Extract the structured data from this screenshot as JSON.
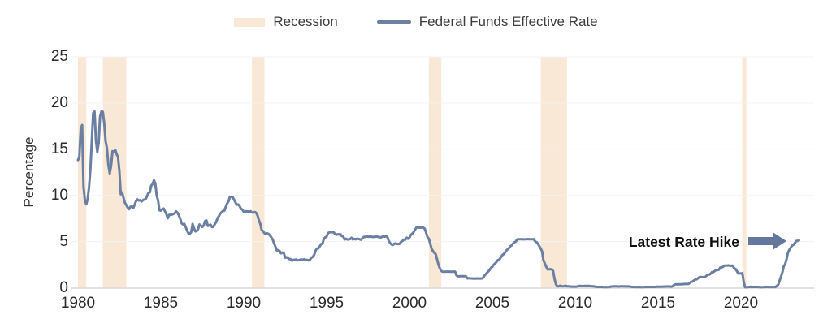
{
  "legend": {
    "recession_label": "Recession",
    "line_label": "Federal Funds Effective Rate"
  },
  "y_axis": {
    "title": "Percentage",
    "ticks": [
      0,
      5,
      10,
      15,
      20,
      25
    ]
  },
  "x_axis": {
    "ticks": [
      1980,
      1985,
      1990,
      1995,
      2000,
      2005,
      2010,
      2015,
      2020
    ]
  },
  "annotation": {
    "label": "Latest Rate Hike",
    "icon": "right-arrow-icon",
    "points_to_value": 5.1
  },
  "colors": {
    "recession_band": "#f9e8d5",
    "line": "#6b7fa2",
    "arrow": "#64789e",
    "axis_line": "#d9d9d9",
    "gridline": "#f3f3f3",
    "tick_text": "#2b2b2b",
    "legend_text": "#3d3d3d",
    "annotation_text": "#111111"
  },
  "chart_data": {
    "type": "line",
    "series_name": "Federal Funds Effective Rate",
    "ylabel": "Percentage",
    "ylim": [
      0,
      25
    ],
    "xlim": [
      1980,
      2023.6
    ],
    "legend_position": "top",
    "grid": "faint-horizontal",
    "frequency": "monthly",
    "x_start_year": 1980,
    "values": [
      13.82,
      14.13,
      17.19,
      17.61,
      10.98,
      9.47,
      9.03,
      9.61,
      10.87,
      12.81,
      15.85,
      18.9,
      19.08,
      15.93,
      14.7,
      15.72,
      18.52,
      19.1,
      19.04,
      17.82,
      15.87,
      15.08,
      13.31,
      12.37,
      13.22,
      14.78,
      14.68,
      14.94,
      14.45,
      14.15,
      12.59,
      10.12,
      10.31,
      9.71,
      9.2,
      8.95,
      8.68,
      8.51,
      8.77,
      8.8,
      8.63,
      8.98,
      9.37,
      9.56,
      9.45,
      9.48,
      9.34,
      9.47,
      9.56,
      9.59,
      9.91,
      10.29,
      10.32,
      11.06,
      11.23,
      11.64,
      11.3,
      9.99,
      9.43,
      8.38,
      8.35,
      8.5,
      8.58,
      8.27,
      7.97,
      7.53,
      7.88,
      7.9,
      7.92,
      7.99,
      8.05,
      8.27,
      8.14,
      7.86,
      7.48,
      6.99,
      6.85,
      6.92,
      6.56,
      6.17,
      5.89,
      5.85,
      6.04,
      6.91,
      6.43,
      6.1,
      6.13,
      6.37,
      6.85,
      6.73,
      6.58,
      6.73,
      7.22,
      7.29,
      6.69,
      6.77,
      6.83,
      6.58,
      6.58,
      6.87,
      7.09,
      7.51,
      7.75,
      8.01,
      8.19,
      8.3,
      8.35,
      8.76,
      9.12,
      9.36,
      9.85,
      9.84,
      9.81,
      9.53,
      9.24,
      8.99,
      9.02,
      8.84,
      8.55,
      8.45,
      8.23,
      8.24,
      8.28,
      8.26,
      8.18,
      8.29,
      8.15,
      8.13,
      8.2,
      8.11,
      7.81,
      7.31,
      6.91,
      6.25,
      6.12,
      5.91,
      5.78,
      5.9,
      5.82,
      5.66,
      5.45,
      5.21,
      4.81,
      4.43,
      4.03,
      4.06,
      3.98,
      3.73,
      3.82,
      3.76,
      3.25,
      3.3,
      3.22,
      3.1,
      3.09,
      2.92,
      3.02,
      3.03,
      3.07,
      2.96,
      3.0,
      3.04,
      3.06,
      3.03,
      3.09,
      2.99,
      3.02,
      2.96,
      3.05,
      3.25,
      3.34,
      3.56,
      4.01,
      4.25,
      4.26,
      4.47,
      4.73,
      4.76,
      5.29,
      5.45,
      5.53,
      5.92,
      5.98,
      6.05,
      6.01,
      6.0,
      5.85,
      5.74,
      5.8,
      5.76,
      5.8,
      5.6,
      5.56,
      5.22,
      5.31,
      5.22,
      5.24,
      5.27,
      5.4,
      5.22,
      5.3,
      5.24,
      5.31,
      5.29,
      5.25,
      5.19,
      5.39,
      5.51,
      5.5,
      5.56,
      5.52,
      5.54,
      5.54,
      5.5,
      5.52,
      5.5,
      5.56,
      5.51,
      5.49,
      5.45,
      5.49,
      5.56,
      5.54,
      5.55,
      5.51,
      5.07,
      4.83,
      4.68,
      4.63,
      4.76,
      4.81,
      4.74,
      4.74,
      4.76,
      4.99,
      5.07,
      5.22,
      5.2,
      5.42,
      5.3,
      5.45,
      5.73,
      5.85,
      6.02,
      6.27,
      6.53,
      6.54,
      6.5,
      6.52,
      6.51,
      6.51,
      6.4,
      5.98,
      5.49,
      5.31,
      4.8,
      4.21,
      3.97,
      3.77,
      3.65,
      3.07,
      2.49,
      2.09,
      1.82,
      1.73,
      1.74,
      1.73,
      1.75,
      1.75,
      1.75,
      1.73,
      1.74,
      1.75,
      1.75,
      1.34,
      1.24,
      1.24,
      1.26,
      1.25,
      1.26,
      1.26,
      1.22,
      1.01,
      1.03,
      1.01,
      1.01,
      1.0,
      0.98,
      1.0,
      1.01,
      1.0,
      1.0,
      1.0,
      1.03,
      1.26,
      1.43,
      1.61,
      1.76,
      1.93,
      2.16,
      2.28,
      2.5,
      2.63,
      2.79,
      3.0,
      3.04,
      3.26,
      3.5,
      3.62,
      3.78,
      4.0,
      4.16,
      4.29,
      4.49,
      4.59,
      4.79,
      4.94,
      4.99,
      5.24,
      5.25,
      5.25,
      5.25,
      5.25,
      5.24,
      5.25,
      5.26,
      5.26,
      5.25,
      5.25,
      5.25,
      5.26,
      5.02,
      4.94,
      4.76,
      4.49,
      4.24,
      3.94,
      2.98,
      2.61,
      2.28,
      1.98,
      2.0,
      2.01,
      2.0,
      1.81,
      0.97,
      0.39,
      0.16,
      0.15,
      0.22,
      0.18,
      0.15,
      0.18,
      0.21,
      0.16,
      0.16,
      0.15,
      0.12,
      0.12,
      0.12,
      0.11,
      0.13,
      0.16,
      0.2,
      0.2,
      0.18,
      0.18,
      0.19,
      0.19,
      0.19,
      0.19,
      0.18,
      0.17,
      0.16,
      0.14,
      0.1,
      0.09,
      0.09,
      0.07,
      0.1,
      0.08,
      0.07,
      0.08,
      0.07,
      0.08,
      0.1,
      0.13,
      0.14,
      0.16,
      0.16,
      0.16,
      0.13,
      0.14,
      0.16,
      0.16,
      0.16,
      0.14,
      0.15,
      0.14,
      0.15,
      0.11,
      0.09,
      0.09,
      0.08,
      0.08,
      0.09,
      0.08,
      0.09,
      0.07,
      0.07,
      0.08,
      0.09,
      0.09,
      0.1,
      0.09,
      0.09,
      0.09,
      0.09,
      0.09,
      0.12,
      0.11,
      0.11,
      0.11,
      0.12,
      0.12,
      0.13,
      0.13,
      0.14,
      0.14,
      0.12,
      0.12,
      0.24,
      0.34,
      0.38,
      0.36,
      0.37,
      0.37,
      0.38,
      0.39,
      0.4,
      0.4,
      0.4,
      0.41,
      0.54,
      0.65,
      0.66,
      0.79,
      0.9,
      0.91,
      1.04,
      1.15,
      1.16,
      1.15,
      1.15,
      1.16,
      1.3,
      1.41,
      1.42,
      1.51,
      1.69,
      1.7,
      1.82,
      1.91,
      1.91,
      1.95,
      2.19,
      2.2,
      2.27,
      2.4,
      2.4,
      2.41,
      2.42,
      2.39,
      2.38,
      2.4,
      2.13,
      2.04,
      1.83,
      1.55,
      1.55,
      1.55,
      1.58,
      0.65,
      0.05,
      0.05,
      0.08,
      0.09,
      0.1,
      0.09,
      0.09,
      0.09,
      0.09,
      0.09,
      0.08,
      0.07,
      0.07,
      0.06,
      0.08,
      0.1,
      0.09,
      0.08,
      0.08,
      0.08,
      0.08,
      0.08,
      0.08,
      0.2,
      0.33,
      0.77,
      1.21,
      1.68,
      2.33,
      2.56,
      3.08,
      3.78,
      4.1,
      4.33,
      4.57,
      4.65,
      4.83,
      5.06,
      5.08,
      5.12
    ],
    "recession_bands": [
      [
        1980.0,
        1980.5
      ],
      [
        1981.5,
        1982.92
      ],
      [
        1990.5,
        1991.25
      ],
      [
        2001.17,
        2001.92
      ],
      [
        2007.92,
        2009.5
      ],
      [
        2020.08,
        2020.33
      ]
    ]
  }
}
